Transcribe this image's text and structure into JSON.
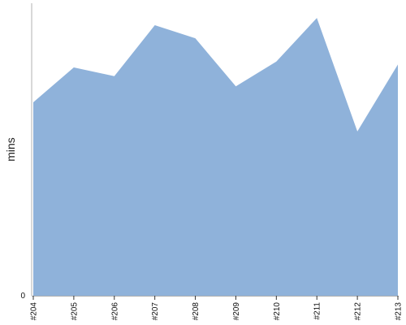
{
  "chart_data": {
    "type": "area",
    "title": "",
    "xlabel": "",
    "ylabel": "mins",
    "categories": [
      "#204",
      "#205",
      "#206",
      "#207",
      "#208",
      "#209",
      "#210",
      "#211",
      "#212",
      "#213"
    ],
    "series": [
      {
        "values": [
          66.5,
          78.5,
          75.5,
          93,
          88.5,
          72,
          80.5,
          95.5,
          56.5,
          79.5
        ]
      }
    ],
    "ylim": [
      0,
      100
    ],
    "y_ticks": [
      {
        "value": 0,
        "label": "0"
      }
    ],
    "grid": false,
    "legend": "none",
    "colors": {
      "area": "#8fb2da",
      "axis": "#b0b0b0",
      "tick": "#333333"
    }
  }
}
